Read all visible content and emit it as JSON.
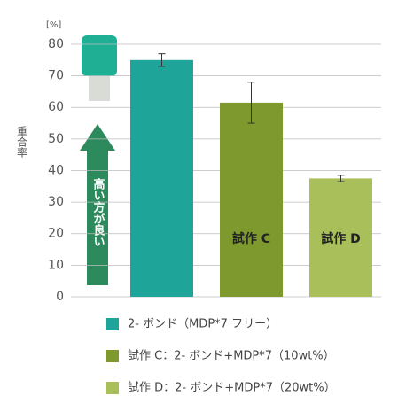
{
  "chart_data": {
    "type": "bar",
    "y_unit": "[%]",
    "y_label": "重合率",
    "annotation": "高い方が良い",
    "categories": [
      null,
      "試作 C",
      "試作 D"
    ],
    "values": [
      75,
      61.5,
      37.5
    ],
    "errors": [
      2,
      6.5,
      1
    ],
    "colors": [
      "#1fa49a",
      "#7e9a2e",
      "#a9bf5a"
    ],
    "legend": [
      "2- ボンド（MDP*7 フリー）",
      "試作 C：2- ボンド+MDP*7（10wt%）",
      "試作 D：2- ボンド+MDP*7（20wt%）"
    ],
    "ylim": [
      0,
      83
    ],
    "yticks": [
      0,
      10,
      20,
      30,
      40,
      50,
      60,
      70,
      80
    ],
    "grid": true
  }
}
